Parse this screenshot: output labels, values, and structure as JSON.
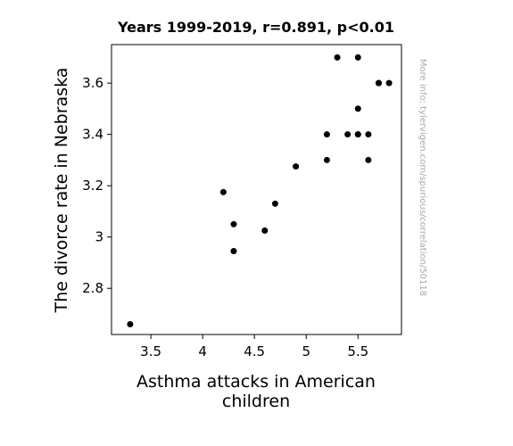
{
  "chart_data": {
    "type": "scatter",
    "title": "Years 1999-2019, r=0.891, p<0.01",
    "xlabel_lines": [
      "Asthma attacks in American",
      "children"
    ],
    "ylabel": "The divorce rate in Nebraska",
    "watermark": "More info: tylervigen.com/spurious/correlation/50118",
    "xlim": [
      3.12,
      5.92
    ],
    "ylim": [
      2.62,
      3.75
    ],
    "xticks": [
      {
        "value": 3.5,
        "label": "3.5"
      },
      {
        "value": 4.0,
        "label": "4"
      },
      {
        "value": 4.5,
        "label": "4.5"
      },
      {
        "value": 5.0,
        "label": "5"
      },
      {
        "value": 5.5,
        "label": "5.5"
      }
    ],
    "yticks": [
      {
        "value": 2.8,
        "label": "2.8"
      },
      {
        "value": 3.0,
        "label": "3"
      },
      {
        "value": 3.2,
        "label": "3.2"
      },
      {
        "value": 3.4,
        "label": "3.4"
      },
      {
        "value": 3.6,
        "label": "3.6"
      }
    ],
    "marker_color": "#000000",
    "points": [
      {
        "x": 3.3,
        "y": 2.66
      },
      {
        "x": 4.2,
        "y": 3.175
      },
      {
        "x": 4.3,
        "y": 3.05
      },
      {
        "x": 4.3,
        "y": 2.945
      },
      {
        "x": 4.6,
        "y": 3.025
      },
      {
        "x": 4.7,
        "y": 3.13
      },
      {
        "x": 4.9,
        "y": 3.275
      },
      {
        "x": 5.2,
        "y": 3.4
      },
      {
        "x": 5.2,
        "y": 3.3
      },
      {
        "x": 5.3,
        "y": 3.7
      },
      {
        "x": 5.4,
        "y": 3.4
      },
      {
        "x": 5.5,
        "y": 3.7
      },
      {
        "x": 5.5,
        "y": 3.5
      },
      {
        "x": 5.5,
        "y": 3.4
      },
      {
        "x": 5.5,
        "y": 3.4
      },
      {
        "x": 5.6,
        "y": 3.4
      },
      {
        "x": 5.6,
        "y": 3.3
      },
      {
        "x": 5.7,
        "y": 3.6
      },
      {
        "x": 5.7,
        "y": 3.6
      },
      {
        "x": 5.8,
        "y": 3.6
      }
    ]
  }
}
